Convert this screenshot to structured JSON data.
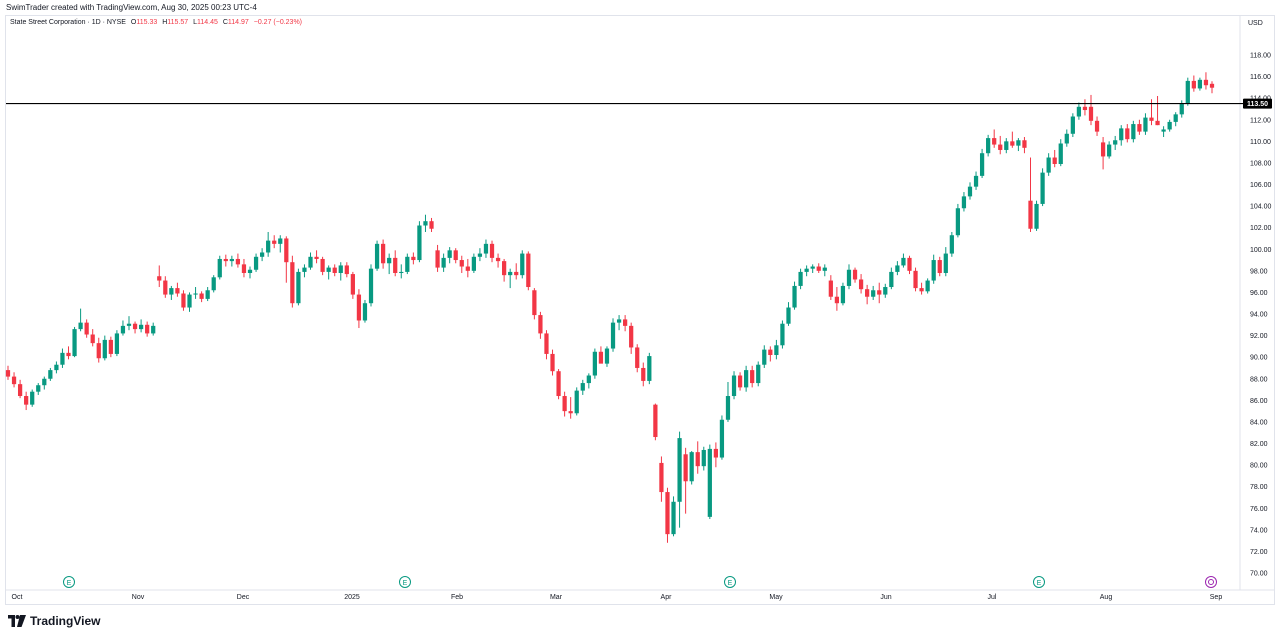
{
  "header": {
    "credit": "SwimTrader created with TradingView.com, Aug 30, 2025 00:23 UTC-4"
  },
  "legend": {
    "symbol": "State Street Corporation · 1D · NYSE",
    "open_label": "O",
    "open": "115.33",
    "high_label": "H",
    "high": "115.57",
    "low_label": "L",
    "low": "114.45",
    "close_label": "C",
    "close": "114.97",
    "change": "−0.27 (−0.23%)"
  },
  "currency": "USD",
  "footer": {
    "brand": "TradingView"
  },
  "chart_data": {
    "type": "candlestick",
    "title": "State Street Corporation · 1D · NYSE",
    "ylim": [
      70,
      118
    ],
    "y_ticks": [
      "70.00",
      "72.00",
      "74.00",
      "76.00",
      "78.00",
      "80.00",
      "82.00",
      "84.00",
      "86.00",
      "88.00",
      "90.00",
      "92.00",
      "94.00",
      "96.00",
      "98.00",
      "100.00",
      "102.00",
      "104.00",
      "106.00",
      "108.00",
      "110.00",
      "112.00",
      "114.00",
      "116.00",
      "118.00"
    ],
    "x_ticks": [
      "Oct",
      "Nov",
      "Dec",
      "2025",
      "Feb",
      "Mar",
      "Apr",
      "May",
      "Jun",
      "Jul",
      "Aug",
      "Sep"
    ],
    "horizontal_line": {
      "value": 113.5,
      "label": "113.50"
    },
    "earnings_markers": [
      "E",
      "E",
      "E",
      "E"
    ],
    "dividend_marker": "dividend",
    "colors": {
      "up": "#089981",
      "down": "#f23645",
      "line": "#000000",
      "text": "#131722",
      "grid": "#e0e3eb"
    },
    "candles": [
      [
        88.8,
        89.2,
        87.9,
        88.2
      ],
      [
        88.2,
        88.6,
        87.2,
        87.5
      ],
      [
        87.5,
        87.9,
        86.2,
        86.4
      ],
      [
        86.4,
        86.8,
        85.1,
        85.6
      ],
      [
        85.6,
        87.0,
        85.4,
        86.8
      ],
      [
        86.8,
        87.6,
        86.5,
        87.4
      ],
      [
        87.4,
        88.2,
        87.0,
        88.0
      ],
      [
        88.0,
        89.0,
        87.8,
        88.8
      ],
      [
        88.8,
        89.6,
        88.5,
        89.3
      ],
      [
        89.3,
        90.8,
        89.0,
        90.4
      ],
      [
        90.4,
        91.0,
        89.8,
        90.1
      ],
      [
        90.1,
        92.8,
        90.0,
        92.6
      ],
      [
        92.6,
        94.5,
        92.4,
        93.2
      ],
      [
        93.2,
        93.5,
        91.8,
        92.1
      ],
      [
        92.1,
        92.6,
        91.0,
        91.3
      ],
      [
        91.3,
        91.8,
        89.5,
        89.9
      ],
      [
        89.9,
        92.0,
        89.7,
        91.6
      ],
      [
        91.6,
        91.9,
        90.0,
        90.3
      ],
      [
        90.3,
        92.5,
        90.1,
        92.2
      ],
      [
        92.2,
        93.4,
        92.0,
        92.9
      ],
      [
        92.9,
        93.8,
        92.5,
        93.1
      ],
      [
        93.1,
        93.3,
        92.2,
        92.6
      ],
      [
        92.6,
        93.5,
        92.3,
        93.0
      ],
      [
        93.0,
        93.3,
        91.9,
        92.2
      ],
      [
        92.2,
        93.2,
        92.0,
        92.9
      ],
      [
        97.5,
        98.5,
        96.5,
        97.1
      ],
      [
        97.1,
        97.5,
        95.5,
        95.8
      ],
      [
        95.8,
        96.6,
        95.3,
        96.4
      ],
      [
        96.4,
        96.9,
        95.6,
        95.9
      ],
      [
        95.9,
        96.2,
        94.3,
        94.6
      ],
      [
        94.6,
        96.0,
        94.2,
        95.8
      ],
      [
        95.8,
        96.5,
        95.4,
        95.9
      ],
      [
        95.9,
        96.1,
        95.1,
        95.4
      ],
      [
        95.4,
        96.5,
        95.2,
        96.2
      ],
      [
        96.2,
        97.6,
        96.0,
        97.4
      ],
      [
        97.4,
        99.4,
        97.2,
        99.1
      ],
      [
        99.1,
        99.5,
        98.4,
        98.9
      ],
      [
        98.9,
        99.4,
        98.4,
        99.1
      ],
      [
        99.1,
        99.6,
        98.3,
        98.6
      ],
      [
        98.6,
        99.1,
        97.4,
        97.8
      ],
      [
        97.8,
        98.4,
        97.3,
        98.1
      ],
      [
        98.1,
        99.6,
        97.9,
        99.3
      ],
      [
        99.3,
        100.1,
        98.9,
        99.7
      ],
      [
        99.7,
        101.6,
        99.3,
        100.8
      ],
      [
        100.8,
        101.3,
        100.1,
        100.5
      ],
      [
        100.5,
        101.3,
        99.7,
        101.0
      ],
      [
        101.0,
        101.2,
        96.9,
        98.8
      ],
      [
        98.8,
        99.4,
        94.6,
        95.0
      ],
      [
        95.0,
        98.2,
        94.8,
        97.9
      ],
      [
        97.9,
        98.6,
        97.4,
        98.3
      ],
      [
        98.3,
        99.7,
        98.1,
        99.3
      ],
      [
        99.3,
        99.9,
        98.7,
        99.1
      ],
      [
        99.1,
        99.3,
        97.6,
        97.9
      ],
      [
        97.9,
        98.5,
        97.2,
        98.3
      ],
      [
        98.3,
        98.6,
        97.5,
        97.8
      ],
      [
        97.8,
        98.8,
        97.1,
        98.5
      ],
      [
        98.5,
        98.8,
        97.4,
        97.7
      ],
      [
        97.7,
        97.9,
        95.4,
        95.8
      ],
      [
        95.8,
        96.3,
        92.7,
        93.4
      ],
      [
        93.4,
        95.3,
        93.2,
        95.0
      ],
      [
        95.0,
        98.6,
        94.7,
        98.2
      ],
      [
        98.2,
        100.8,
        98.0,
        100.5
      ],
      [
        100.5,
        100.9,
        98.2,
        98.7
      ],
      [
        98.7,
        99.6,
        97.7,
        99.2
      ],
      [
        99.2,
        99.9,
        97.5,
        97.8
      ],
      [
        97.8,
        98.6,
        97.3,
        97.9
      ],
      [
        97.9,
        99.6,
        97.7,
        99.3
      ],
      [
        99.3,
        99.7,
        98.6,
        99.0
      ],
      [
        99.0,
        102.6,
        98.8,
        102.2
      ],
      [
        102.2,
        103.2,
        101.6,
        102.6
      ],
      [
        102.6,
        102.9,
        101.6,
        101.9
      ],
      [
        99.9,
        100.4,
        97.9,
        98.3
      ],
      [
        98.3,
        99.6,
        97.9,
        99.2
      ],
      [
        99.2,
        100.2,
        98.7,
        99.9
      ],
      [
        99.9,
        100.1,
        98.7,
        99.0
      ],
      [
        99.0,
        99.4,
        97.8,
        98.4
      ],
      [
        98.4,
        99.1,
        97.4,
        98.0
      ],
      [
        98.0,
        99.6,
        97.8,
        99.3
      ],
      [
        99.3,
        100.1,
        98.9,
        99.6
      ],
      [
        99.6,
        100.9,
        99.2,
        100.5
      ],
      [
        100.5,
        100.8,
        98.8,
        99.2
      ],
      [
        99.2,
        99.6,
        98.3,
        98.9
      ],
      [
        98.9,
        99.1,
        97.0,
        97.6
      ],
      [
        97.6,
        98.2,
        96.4,
        97.9
      ],
      [
        97.9,
        98.7,
        97.2,
        97.6
      ],
      [
        97.6,
        99.9,
        97.3,
        99.6
      ],
      [
        99.6,
        99.8,
        96.2,
        96.5
      ],
      [
        96.2,
        96.4,
        93.5,
        93.9
      ],
      [
        93.9,
        94.2,
        91.7,
        92.2
      ],
      [
        92.2,
        92.5,
        89.8,
        90.3
      ],
      [
        90.3,
        90.7,
        88.3,
        88.7
      ],
      [
        88.7,
        88.9,
        86.1,
        86.4
      ],
      [
        86.4,
        86.8,
        84.5,
        85.0
      ],
      [
        85.0,
        86.3,
        84.3,
        84.8
      ],
      [
        84.8,
        87.2,
        84.6,
        86.9
      ],
      [
        86.9,
        87.9,
        86.5,
        87.6
      ],
      [
        87.6,
        88.5,
        87.1,
        88.3
      ],
      [
        88.3,
        90.8,
        88.0,
        90.5
      ],
      [
        90.5,
        91.0,
        89.8,
        89.4
      ],
      [
        89.4,
        91.0,
        89.1,
        90.8
      ],
      [
        90.8,
        93.6,
        90.5,
        93.2
      ],
      [
        93.2,
        93.9,
        92.5,
        93.5
      ],
      [
        93.5,
        93.9,
        92.4,
        92.9
      ],
      [
        92.9,
        93.2,
        90.3,
        90.9
      ],
      [
        90.9,
        91.2,
        88.6,
        89.0
      ],
      [
        89.0,
        89.5,
        87.3,
        87.8
      ],
      [
        87.8,
        90.4,
        87.5,
        90.1
      ],
      [
        85.6,
        85.7,
        82.3,
        82.6
      ],
      [
        80.2,
        80.8,
        76.6,
        77.5
      ],
      [
        77.5,
        77.9,
        72.8,
        73.6
      ],
      [
        73.6,
        77.1,
        73.4,
        76.6
      ],
      [
        76.6,
        83.1,
        74.2,
        82.5
      ],
      [
        81.0,
        81.6,
        75.5,
        78.5
      ],
      [
        78.5,
        81.3,
        78.2,
        81.2
      ],
      [
        81.2,
        82.2,
        79.2,
        79.9
      ],
      [
        79.9,
        81.7,
        79.5,
        81.4
      ],
      [
        75.2,
        81.9,
        75.0,
        81.5
      ],
      [
        81.5,
        82.1,
        79.8,
        80.7
      ],
      [
        80.7,
        84.6,
        80.5,
        84.2
      ],
      [
        84.2,
        87.7,
        84.0,
        86.4
      ],
      [
        86.4,
        88.7,
        86.1,
        88.3
      ],
      [
        88.3,
        88.6,
        86.9,
        87.2
      ],
      [
        87.2,
        89.2,
        86.8,
        88.8
      ],
      [
        88.8,
        89.2,
        87.2,
        87.6
      ],
      [
        87.6,
        89.6,
        87.3,
        89.3
      ],
      [
        89.3,
        91.1,
        89.0,
        90.7
      ],
      [
        90.7,
        91.0,
        89.6,
        90.2
      ],
      [
        90.2,
        91.6,
        89.8,
        91.1
      ],
      [
        91.1,
        93.4,
        90.8,
        93.1
      ],
      [
        93.1,
        95.1,
        92.9,
        94.6
      ],
      [
        94.6,
        97.0,
        94.4,
        96.6
      ],
      [
        96.6,
        98.2,
        96.3,
        97.9
      ],
      [
        97.9,
        98.5,
        97.5,
        98.2
      ],
      [
        98.2,
        98.6,
        97.8,
        98.4
      ],
      [
        98.4,
        98.7,
        97.8,
        98.0
      ],
      [
        98.0,
        98.6,
        97.5,
        98.3
      ],
      [
        97.1,
        97.6,
        95.3,
        95.6
      ],
      [
        95.6,
        96.5,
        94.3,
        95.0
      ],
      [
        95.0,
        96.9,
        94.8,
        96.6
      ],
      [
        96.6,
        98.6,
        96.3,
        98.1
      ],
      [
        98.1,
        98.3,
        96.9,
        97.2
      ],
      [
        97.2,
        97.7,
        95.9,
        96.3
      ],
      [
        96.3,
        96.7,
        94.9,
        95.6
      ],
      [
        95.6,
        96.6,
        95.3,
        96.2
      ],
      [
        96.2,
        96.9,
        95.0,
        95.8
      ],
      [
        95.8,
        96.8,
        95.5,
        96.5
      ],
      [
        96.5,
        98.3,
        96.3,
        97.9
      ],
      [
        97.9,
        98.9,
        97.6,
        98.5
      ],
      [
        98.5,
        99.6,
        98.3,
        99.2
      ],
      [
        99.2,
        99.4,
        97.7,
        98.0
      ],
      [
        98.0,
        98.3,
        96.1,
        96.4
      ],
      [
        96.4,
        96.9,
        95.8,
        96.1
      ],
      [
        96.1,
        97.3,
        95.9,
        97.1
      ],
      [
        97.1,
        99.5,
        96.8,
        99.0
      ],
      [
        99.0,
        99.3,
        97.5,
        97.8
      ],
      [
        97.8,
        100.2,
        97.5,
        99.6
      ],
      [
        99.6,
        101.6,
        99.3,
        101.3
      ],
      [
        101.3,
        104.2,
        101.1,
        103.8
      ],
      [
        103.8,
        105.3,
        103.5,
        104.9
      ],
      [
        104.9,
        106.2,
        104.6,
        105.8
      ],
      [
        105.8,
        107.2,
        105.5,
        106.8
      ],
      [
        106.8,
        109.3,
        106.6,
        108.9
      ],
      [
        108.9,
        110.6,
        108.6,
        110.3
      ],
      [
        110.3,
        111.1,
        109.4,
        109.7
      ],
      [
        109.7,
        110.5,
        108.8,
        109.2
      ],
      [
        109.2,
        110.3,
        108.9,
        110.0
      ],
      [
        110.0,
        110.9,
        109.4,
        109.6
      ],
      [
        109.6,
        110.3,
        109.1,
        110.1
      ],
      [
        110.1,
        110.4,
        108.9,
        109.4
      ],
      [
        104.5,
        108.5,
        101.6,
        101.9
      ],
      [
        101.9,
        104.5,
        101.7,
        104.2
      ],
      [
        104.2,
        107.5,
        104.0,
        107.1
      ],
      [
        107.1,
        108.9,
        106.8,
        108.5
      ],
      [
        108.5,
        109.2,
        107.6,
        107.9
      ],
      [
        107.9,
        110.2,
        107.7,
        109.8
      ],
      [
        109.8,
        111.1,
        109.5,
        110.7
      ],
      [
        110.7,
        112.6,
        110.4,
        112.3
      ],
      [
        112.3,
        113.6,
        112.0,
        113.2
      ],
      [
        113.2,
        113.9,
        112.4,
        112.9
      ],
      [
        113.2,
        114.3,
        111.5,
        111.9
      ],
      [
        111.9,
        112.3,
        110.5,
        110.9
      ],
      [
        109.9,
        110.4,
        107.4,
        108.6
      ],
      [
        108.6,
        110.0,
        108.4,
        109.7
      ],
      [
        109.7,
        110.5,
        109.2,
        110.1
      ],
      [
        110.1,
        111.5,
        109.6,
        111.2
      ],
      [
        111.2,
        111.6,
        109.9,
        110.2
      ],
      [
        110.2,
        111.9,
        109.9,
        111.6
      ],
      [
        111.6,
        112.0,
        110.6,
        110.9
      ],
      [
        110.9,
        112.6,
        110.6,
        112.2
      ],
      [
        112.2,
        113.9,
        111.5,
        111.9
      ],
      [
        111.9,
        114.2,
        111.5,
        111.5
      ],
      [
        110.9,
        111.4,
        110.4,
        111.1
      ],
      [
        111.1,
        112.0,
        110.9,
        111.8
      ],
      [
        111.8,
        112.7,
        111.4,
        112.5
      ],
      [
        112.5,
        113.8,
        112.2,
        113.5
      ],
      [
        113.5,
        115.9,
        113.3,
        115.6
      ],
      [
        115.6,
        116.1,
        114.6,
        114.9
      ],
      [
        114.9,
        115.9,
        114.7,
        115.7
      ],
      [
        115.7,
        116.4,
        114.8,
        115.2
      ],
      [
        115.33,
        115.57,
        114.45,
        114.97
      ]
    ]
  }
}
